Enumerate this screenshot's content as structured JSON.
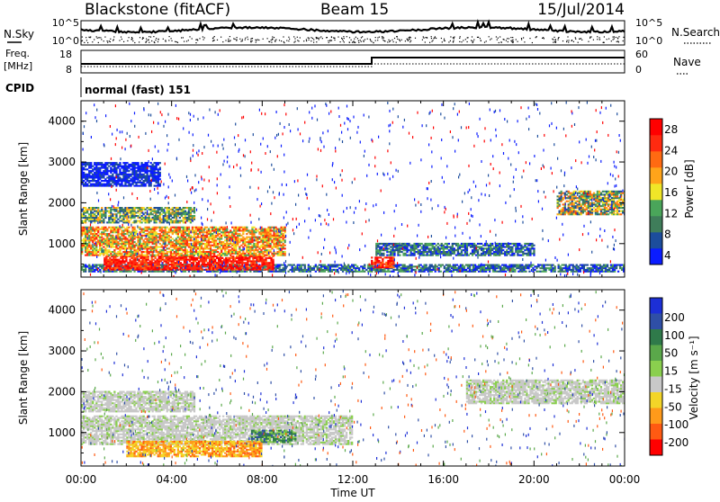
{
  "header": {
    "station": "Blackstone (fitACF)",
    "beam": "Beam 15",
    "date": "15/Jul/2014"
  },
  "left_labels": {
    "nsky": "N.Sky",
    "freq_line1": "Freq.",
    "freq_line2": "[MHz]",
    "cpid": "CPID"
  },
  "right_labels": {
    "nsearch": "N.Search",
    "nave": "Nave"
  },
  "noise_panel": {
    "left_ticks": [
      "10^5",
      "10^0"
    ],
    "right_ticks": [
      "10^5",
      "10^0"
    ]
  },
  "freq_panel": {
    "left_ticks": [
      "18",
      "8"
    ],
    "right_ticks": [
      "60",
      "0"
    ]
  },
  "cpid_text": "normal (fast) 151",
  "colors": {
    "power_scale": [
      "#0a1cff",
      "#1c4d9c",
      "#3f7d5a",
      "#4aa55a",
      "#f0e628",
      "#ffa41a",
      "#ff6a12",
      "#ff2a10",
      "#ff0000"
    ],
    "velocity_scale": [
      "#1c2fd6",
      "#2f4fa6",
      "#2f7a4a",
      "#5aa84a",
      "#8acf4e",
      "#c8c8c8",
      "#f3d528",
      "#ff9a1a",
      "#ff5a12",
      "#ff0000"
    ],
    "frame": "#000000"
  },
  "chart_data": [
    {
      "type": "heatmap",
      "name": "power",
      "ylabel": "Slant Range [km]",
      "xlabel": "Time UT",
      "x_ticks": [
        "00:00",
        "04:00",
        "08:00",
        "12:00",
        "16:00",
        "20:00",
        "00:00"
      ],
      "y_ticks": [
        "1000",
        "2000",
        "3000",
        "4000"
      ],
      "xlim": [
        0,
        24
      ],
      "ylim": [
        180,
        4500
      ],
      "colorbar": {
        "label": "Power [dB]",
        "ticks": [
          "28",
          "24",
          "20",
          "16",
          "12",
          "8",
          "4"
        ]
      },
      "features": [
        {
          "range_km": [
            300,
            500
          ],
          "time_h": [
            0,
            24
          ],
          "level": "8-12 dB"
        },
        {
          "range_km": [
            350,
            700
          ],
          "time_h": [
            1,
            8.5
          ],
          "level": "24-30 dB"
        },
        {
          "range_km": [
            400,
            650
          ],
          "time_h": [
            12.8,
            13.8
          ],
          "level": "24-30 dB"
        },
        {
          "range_km": [
            700,
            1400
          ],
          "time_h": [
            0,
            9
          ],
          "level": "16-24 dB"
        },
        {
          "range_km": [
            700,
            1000
          ],
          "time_h": [
            13,
            20
          ],
          "level": "8-16 dB"
        },
        {
          "range_km": [
            1500,
            1900
          ],
          "time_h": [
            0,
            5
          ],
          "level": "12-20 dB"
        },
        {
          "range_km": [
            1700,
            2300
          ],
          "time_h": [
            21,
            24
          ],
          "level": "8-20 dB"
        },
        {
          "range_km": [
            2400,
            3000
          ],
          "time_h": [
            0,
            3.5
          ],
          "level": "4-8 dB"
        }
      ]
    },
    {
      "type": "heatmap",
      "name": "velocity",
      "ylabel": "Slant Range [km]",
      "xlabel": "Time UT",
      "x_ticks": [
        "00:00",
        "04:00",
        "08:00",
        "12:00",
        "16:00",
        "20:00",
        "00:00"
      ],
      "y_ticks": [
        "1000",
        "2000",
        "3000",
        "4000"
      ],
      "xlim": [
        0,
        24
      ],
      "ylim": [
        180,
        4500
      ],
      "colorbar": {
        "label": "Velocity [m s⁻¹]",
        "ticks": [
          "200",
          "100",
          "50",
          "15",
          "-15",
          "-50",
          "-100",
          "-200"
        ]
      },
      "features": [
        {
          "range_km": [
            700,
            1400
          ],
          "time_h": [
            0,
            12
          ],
          "velocity": "-15 to 15 (ground scatter)"
        },
        {
          "range_km": [
            750,
            1050
          ],
          "time_h": [
            7.5,
            9.5
          ],
          "velocity": "50-100"
        },
        {
          "range_km": [
            400,
            800
          ],
          "time_h": [
            2,
            8
          ],
          "velocity": "-50 to -100"
        },
        {
          "range_km": [
            1500,
            2000
          ],
          "time_h": [
            0,
            5
          ],
          "velocity": "-15 to 15"
        },
        {
          "range_km": [
            1700,
            2300
          ],
          "time_h": [
            17,
            24
          ],
          "velocity": "-15 to 15"
        }
      ]
    }
  ],
  "xaxis_title": "Time UT"
}
